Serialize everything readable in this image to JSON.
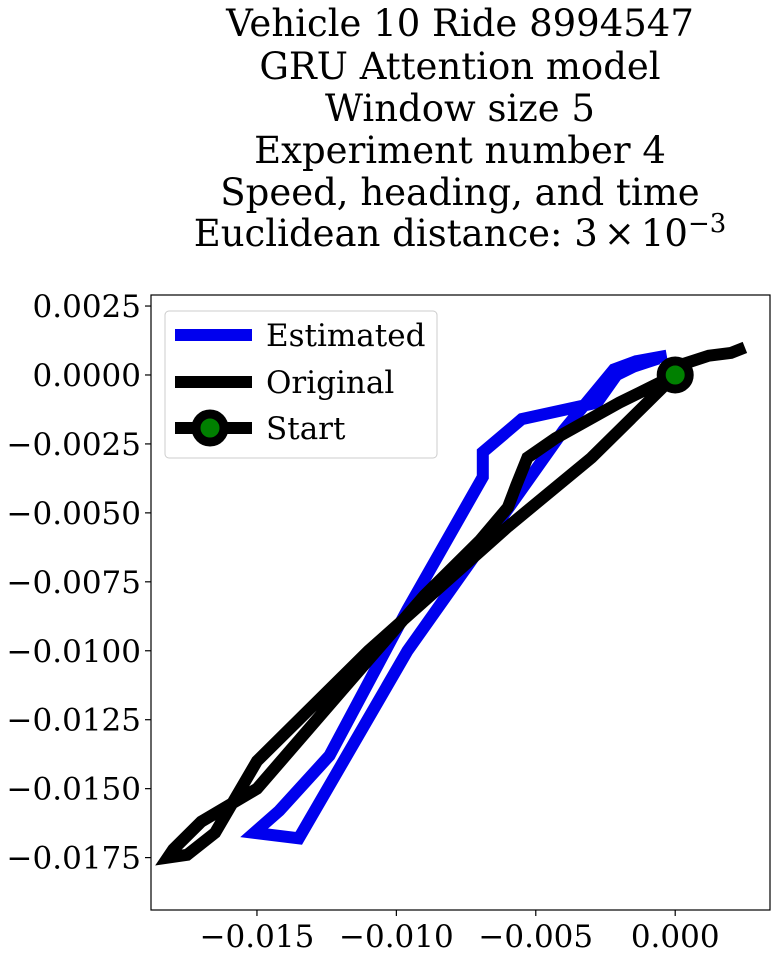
{
  "chart_data": {
    "type": "line",
    "title_lines": [
      "Vehicle 10 Ride 8994547",
      "GRU Attention model",
      "Window size 5",
      "Experiment number 4",
      "Speed, heading, and time"
    ],
    "title_distance_prefix": "Euclidean distance: 3",
    "title_distance_times": "×",
    "title_distance_base": "10",
    "title_distance_exp": "−3",
    "xlim": [
      -0.0188,
      0.0034
    ],
    "ylim": [
      -0.0194,
      0.0029
    ],
    "x_ticks": [
      -0.015,
      -0.01,
      -0.005,
      0.0
    ],
    "x_tick_labels": [
      "−0.015",
      "−0.010",
      "−0.005",
      "0.000"
    ],
    "y_ticks": [
      0.0025,
      0.0,
      -0.0025,
      -0.005,
      -0.0075,
      -0.01,
      -0.0125,
      -0.015,
      -0.0175
    ],
    "y_tick_labels": [
      "0.0025",
      "0.0000",
      "−0.0025",
      "−0.0050",
      "−0.0075",
      "−0.0100",
      "−0.0125",
      "−0.0150",
      "−0.0175"
    ],
    "legend_position": "upper-left",
    "series": [
      {
        "name": "Estimated",
        "color": "#0000ee",
        "x": [
          -0.0006,
          -0.0015,
          -0.0021,
          -0.0028,
          -0.0055,
          -0.0069,
          -0.0069,
          -0.0096,
          -0.0124,
          -0.0142,
          -0.0151,
          -0.0135,
          -0.0096,
          -0.004,
          -0.0022,
          -0.0014,
          -0.0003
        ],
        "y": [
          0.0006,
          0.0003,
          0.0,
          -0.001,
          -0.0016,
          -0.0028,
          -0.0037,
          -0.0085,
          -0.0138,
          -0.0158,
          -0.0166,
          -0.0168,
          -0.01,
          -0.002,
          0.0002,
          0.0005,
          0.0007
        ]
      },
      {
        "name": "Original",
        "color": "#000000",
        "x": [
          0.0025,
          0.002,
          0.0012,
          0.0003,
          0.0,
          -0.002,
          -0.0043,
          -0.0053,
          -0.0057,
          -0.006,
          -0.007,
          -0.009,
          -0.012,
          -0.015,
          -0.017,
          -0.018,
          -0.0182,
          -0.0175,
          -0.0165,
          -0.015,
          -0.011,
          -0.006,
          -0.003,
          -0.001,
          0.0
        ],
        "y": [
          0.001,
          0.0008,
          0.0007,
          0.0004,
          0.0,
          -0.001,
          -0.0023,
          -0.003,
          -0.004,
          -0.0048,
          -0.006,
          -0.008,
          -0.0115,
          -0.015,
          -0.0162,
          -0.0172,
          -0.0175,
          -0.0174,
          -0.0166,
          -0.014,
          -0.01,
          -0.0055,
          -0.003,
          -0.001,
          0.0
        ]
      }
    ],
    "start_point": {
      "name": "Start",
      "x": 0.0,
      "y": 0.0,
      "marker_edge": "#000000",
      "marker_face": "#008000"
    }
  }
}
